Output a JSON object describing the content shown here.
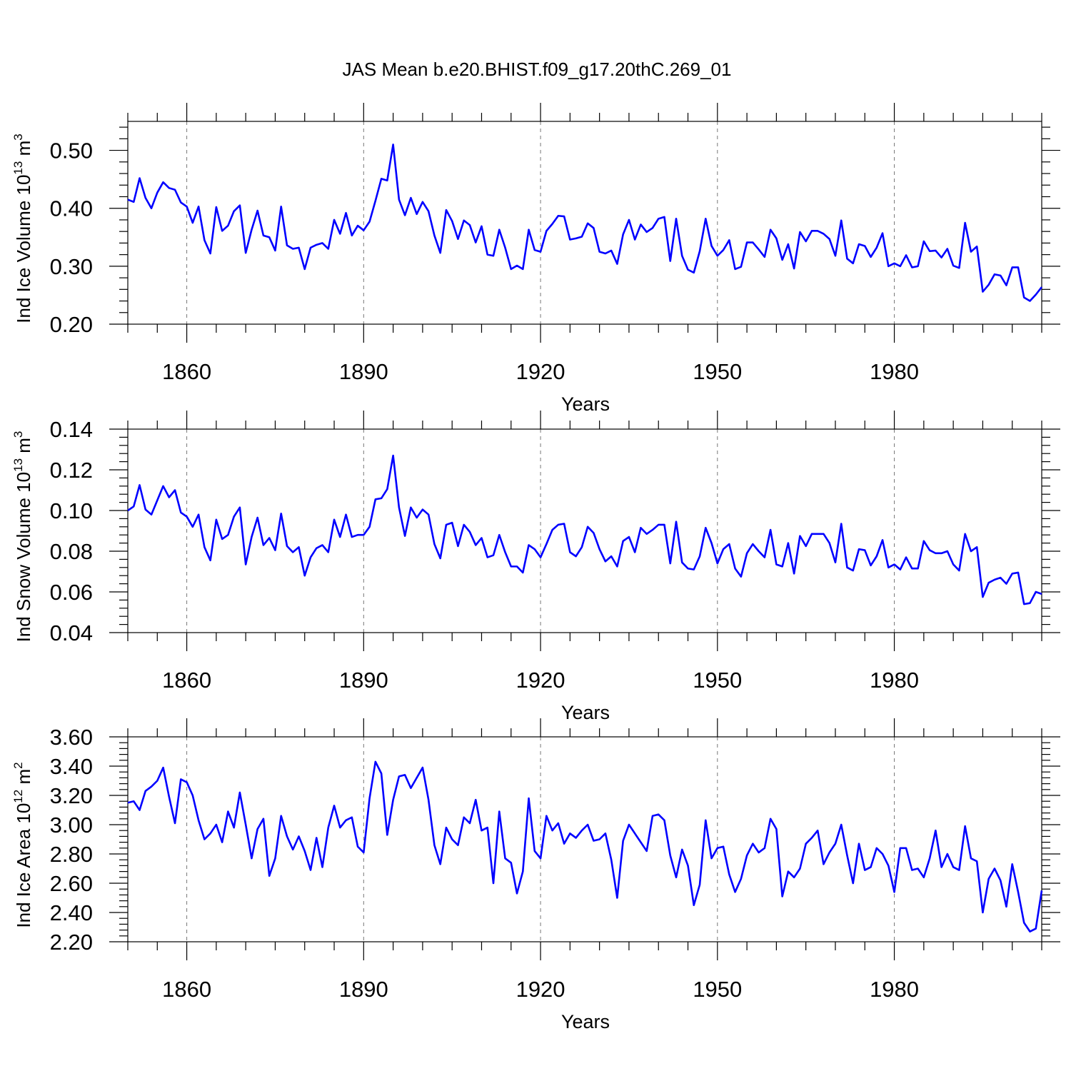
{
  "title": "JAS Mean b.e20.BHIST.f09_g17.20thC.269_01",
  "colors": {
    "series": "#0000ff",
    "axis": "#000000",
    "grid": "#777777"
  },
  "chart_data": [
    {
      "type": "line",
      "title": "JAS Mean b.e20.BHIST.f09_g17.20thC.269_01",
      "ylabel": "Ind Ice Volume 10^13 m^3",
      "ylabel_parts": {
        "main": "Ind Ice Volume 10",
        "exp1": "13",
        "mid": " m",
        "exp2": "3"
      },
      "xlabel": "Years",
      "xlim": [
        1850,
        2005
      ],
      "ylim": [
        0.2,
        0.55
      ],
      "xticks": [
        1860,
        1890,
        1920,
        1950,
        1980
      ],
      "xtick_labels": [
        "1860",
        "1890",
        "1920",
        "1950",
        "1980"
      ],
      "yticks": [
        0.2,
        0.3,
        0.4,
        0.5
      ],
      "ytick_labels": [
        "0.20",
        "0.30",
        "0.40",
        "0.50"
      ],
      "x_start": 1850,
      "series": [
        {
          "name": "Ind Ice Volume",
          "values": [
            0.415,
            0.411,
            0.452,
            0.418,
            0.4,
            0.427,
            0.445,
            0.435,
            0.432,
            0.41,
            0.403,
            0.375,
            0.403,
            0.345,
            0.322,
            0.402,
            0.361,
            0.37,
            0.395,
            0.405,
            0.323,
            0.363,
            0.396,
            0.353,
            0.35,
            0.327,
            0.403,
            0.336,
            0.33,
            0.332,
            0.295,
            0.332,
            0.337,
            0.34,
            0.33,
            0.38,
            0.356,
            0.392,
            0.353,
            0.37,
            0.362,
            0.377,
            0.413,
            0.451,
            0.448,
            0.51,
            0.415,
            0.388,
            0.418,
            0.39,
            0.411,
            0.395,
            0.353,
            0.323,
            0.397,
            0.378,
            0.347,
            0.379,
            0.371,
            0.341,
            0.369,
            0.32,
            0.318,
            0.363,
            0.332,
            0.295,
            0.301,
            0.295,
            0.363,
            0.328,
            0.325,
            0.361,
            0.373,
            0.387,
            0.386,
            0.346,
            0.348,
            0.351,
            0.374,
            0.366,
            0.325,
            0.322,
            0.327,
            0.304,
            0.355,
            0.38,
            0.346,
            0.372,
            0.359,
            0.366,
            0.382,
            0.385,
            0.309,
            0.382,
            0.318,
            0.294,
            0.289,
            0.326,
            0.382,
            0.335,
            0.318,
            0.328,
            0.345,
            0.295,
            0.299,
            0.341,
            0.341,
            0.329,
            0.316,
            0.363,
            0.348,
            0.311,
            0.338,
            0.296,
            0.359,
            0.343,
            0.361,
            0.361,
            0.356,
            0.347,
            0.318,
            0.379,
            0.313,
            0.305,
            0.338,
            0.335,
            0.316,
            0.332,
            0.357,
            0.3,
            0.305,
            0.3,
            0.319,
            0.298,
            0.3,
            0.343,
            0.326,
            0.327,
            0.315,
            0.33,
            0.301,
            0.297,
            0.375,
            0.325,
            0.334,
            0.256,
            0.268,
            0.286,
            0.284,
            0.267,
            0.298,
            0.298,
            0.246,
            0.24,
            0.251,
            0.264
          ]
        }
      ]
    },
    {
      "type": "line",
      "ylabel": "Ind Snow Volume 10^13 m^3",
      "ylabel_parts": {
        "main": "Ind Snow Volume 10",
        "exp1": "13",
        "mid": " m",
        "exp2": "3"
      },
      "xlabel": "Years",
      "xlim": [
        1850,
        2005
      ],
      "ylim": [
        0.04,
        0.14
      ],
      "xticks": [
        1860,
        1890,
        1920,
        1950,
        1980
      ],
      "xtick_labels": [
        "1860",
        "1890",
        "1920",
        "1950",
        "1980"
      ],
      "yticks": [
        0.04,
        0.06,
        0.08,
        0.1,
        0.12,
        0.14
      ],
      "ytick_labels": [
        "0.04",
        "0.06",
        "0.08",
        "0.10",
        "0.12",
        "0.14"
      ],
      "x_start": 1850,
      "series": [
        {
          "name": "Ind Snow Volume",
          "values": [
            0.1,
            0.102,
            0.1125,
            0.1005,
            0.098,
            0.105,
            0.112,
            0.1065,
            0.11,
            0.099,
            0.097,
            0.092,
            0.098,
            0.082,
            0.0755,
            0.0955,
            0.086,
            0.088,
            0.097,
            0.1015,
            0.0735,
            0.087,
            0.0965,
            0.083,
            0.0865,
            0.0805,
            0.0985,
            0.0825,
            0.0795,
            0.082,
            0.068,
            0.077,
            0.0815,
            0.083,
            0.0795,
            0.0955,
            0.087,
            0.098,
            0.087,
            0.088,
            0.088,
            0.092,
            0.1055,
            0.106,
            0.1105,
            0.127,
            0.1015,
            0.0875,
            0.1015,
            0.0965,
            0.1005,
            0.098,
            0.0835,
            0.0765,
            0.093,
            0.094,
            0.0825,
            0.093,
            0.0895,
            0.083,
            0.0865,
            0.077,
            0.078,
            0.088,
            0.0795,
            0.0725,
            0.0725,
            0.0695,
            0.083,
            0.081,
            0.077,
            0.0835,
            0.0905,
            0.093,
            0.0935,
            0.0795,
            0.0775,
            0.082,
            0.092,
            0.089,
            0.081,
            0.075,
            0.0775,
            0.0725,
            0.085,
            0.087,
            0.0795,
            0.0915,
            0.0885,
            0.0905,
            0.093,
            0.093,
            0.074,
            0.0945,
            0.0745,
            0.0715,
            0.071,
            0.0775,
            0.0915,
            0.084,
            0.074,
            0.081,
            0.0835,
            0.0715,
            0.0675,
            0.079,
            0.0835,
            0.08,
            0.077,
            0.0905,
            0.0735,
            0.0725,
            0.084,
            0.069,
            0.0875,
            0.0825,
            0.0885,
            0.0885,
            0.0885,
            0.084,
            0.0745,
            0.0935,
            0.072,
            0.0705,
            0.081,
            0.0805,
            0.073,
            0.0775,
            0.0855,
            0.072,
            0.0735,
            0.071,
            0.077,
            0.0715,
            0.0715,
            0.085,
            0.0805,
            0.079,
            0.079,
            0.08,
            0.0735,
            0.0705,
            0.0885,
            0.08,
            0.082,
            0.0575,
            0.0645,
            0.066,
            0.067,
            0.064,
            0.069,
            0.0695,
            0.054,
            0.0545,
            0.06,
            0.059
          ]
        }
      ]
    },
    {
      "type": "line",
      "ylabel": "Ind Ice Area 10^12 m^2",
      "ylabel_parts": {
        "main": "Ind Ice Area 10",
        "exp1": "12",
        "mid": " m",
        "exp2": "2"
      },
      "xlabel": "Years",
      "xlim": [
        1850,
        2005
      ],
      "ylim": [
        2.2,
        3.6
      ],
      "xticks": [
        1860,
        1890,
        1920,
        1950,
        1980
      ],
      "xtick_labels": [
        "1860",
        "1890",
        "1920",
        "1950",
        "1980"
      ],
      "yticks": [
        2.2,
        2.4,
        2.6,
        2.8,
        3.0,
        3.2,
        3.4,
        3.6
      ],
      "ytick_labels": [
        "2.20",
        "2.40",
        "2.60",
        "2.80",
        "3.00",
        "3.20",
        "3.40",
        "3.60"
      ],
      "x_start": 1850,
      "series": [
        {
          "name": "Ind Ice Area",
          "values": [
            3.15,
            3.16,
            3.1,
            3.23,
            3.26,
            3.3,
            3.39,
            3.19,
            3.01,
            3.31,
            3.29,
            3.2,
            3.03,
            2.9,
            2.94,
            3.0,
            2.88,
            3.09,
            2.98,
            3.22,
            3.0,
            2.77,
            2.97,
            3.04,
            2.65,
            2.77,
            3.06,
            2.92,
            2.83,
            2.92,
            2.82,
            2.69,
            2.91,
            2.71,
            2.98,
            3.13,
            2.98,
            3.03,
            3.05,
            2.85,
            2.81,
            3.18,
            3.43,
            3.35,
            2.93,
            3.17,
            3.33,
            3.34,
            3.25,
            3.32,
            3.39,
            3.17,
            2.86,
            2.73,
            2.98,
            2.9,
            2.86,
            3.05,
            3.01,
            3.17,
            2.96,
            2.98,
            2.6,
            3.09,
            2.77,
            2.74,
            2.53,
            2.68,
            3.18,
            2.82,
            2.77,
            3.06,
            2.96,
            3.01,
            2.87,
            2.94,
            2.91,
            2.96,
            3.0,
            2.89,
            2.9,
            2.94,
            2.76,
            2.5,
            2.89,
            3.0,
            2.94,
            2.88,
            2.82,
            3.06,
            3.07,
            3.03,
            2.79,
            2.64,
            2.83,
            2.72,
            2.45,
            2.59,
            3.03,
            2.77,
            2.84,
            2.85,
            2.66,
            2.54,
            2.63,
            2.79,
            2.87,
            2.81,
            2.84,
            3.04,
            2.97,
            2.51,
            2.68,
            2.64,
            2.7,
            2.87,
            2.91,
            2.96,
            2.73,
            2.81,
            2.87,
            3.0,
            2.79,
            2.6,
            2.87,
            2.69,
            2.71,
            2.84,
            2.8,
            2.72,
            2.54,
            2.84,
            2.84,
            2.69,
            2.7,
            2.64,
            2.77,
            2.96,
            2.71,
            2.8,
            2.71,
            2.69,
            2.99,
            2.77,
            2.75,
            2.4,
            2.63,
            2.7,
            2.62,
            2.44,
            2.73,
            2.54,
            2.33,
            2.27,
            2.29,
            2.55
          ]
        }
      ]
    }
  ]
}
